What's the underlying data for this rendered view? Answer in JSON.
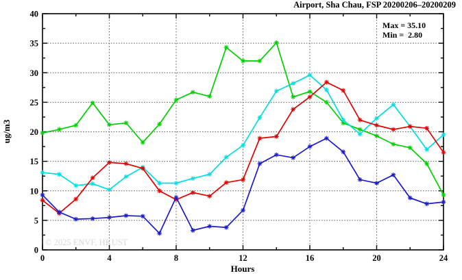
{
  "header": {
    "title": "Airport, Sha Chau, FSP 20200206–20200209"
  },
  "annotation": {
    "max_line": "Max = 35.10",
    "min_line": "Min =  2.80"
  },
  "watermark": "© 2025 ENVF, HKUST",
  "axes": {
    "x_label": "Hours",
    "y_label": "ug/m3"
  },
  "chart_data": {
    "type": "line",
    "title": "Airport, Sha Chau, FSP 20200206–20200209",
    "xlabel": "Hours",
    "ylabel": "ug/m3",
    "xlim": [
      0,
      24
    ],
    "ylim": [
      0,
      40
    ],
    "x_major_ticks": [
      0,
      4,
      8,
      12,
      16,
      20,
      24
    ],
    "x_minor_step": 2,
    "y_major_ticks": [
      0,
      5,
      10,
      15,
      20,
      25,
      30,
      35,
      40
    ],
    "y_minor_step": 2.5,
    "grid": "dotted lines at major ticks, full box frame with inward ticks",
    "legend": "none",
    "marker": "asterisk",
    "x": [
      0,
      1,
      2,
      3,
      4,
      5,
      6,
      7,
      8,
      9,
      10,
      11,
      12,
      13,
      14,
      15,
      16,
      17,
      18,
      19,
      20,
      21,
      22,
      23,
      24
    ],
    "series": [
      {
        "name": "green",
        "color": "#00cf00",
        "values": [
          19.8,
          20.4,
          21.1,
          24.9,
          21.2,
          21.5,
          18.2,
          21.3,
          25.4,
          26.7,
          26.0,
          34.3,
          32.0,
          32.0,
          35.1,
          25.9,
          26.8,
          25.0,
          21.5,
          20.4,
          19.3,
          17.9,
          17.3,
          14.6,
          9.3
        ]
      },
      {
        "name": "cyan",
        "color": "#00dede",
        "values": [
          13.1,
          12.8,
          10.9,
          11.2,
          10.2,
          12.4,
          14.0,
          11.3,
          11.3,
          12.1,
          12.8,
          15.7,
          17.7,
          22.4,
          26.9,
          28.2,
          29.6,
          27.1,
          22.0,
          19.6,
          22.3,
          24.6,
          20.9,
          17.0,
          19.5
        ]
      },
      {
        "name": "red",
        "color": "#e00000",
        "values": [
          8.4,
          6.2,
          8.6,
          12.2,
          14.8,
          14.6,
          13.8,
          10.0,
          8.5,
          9.7,
          9.1,
          11.4,
          11.9,
          18.9,
          19.2,
          23.8,
          25.9,
          28.4,
          27.0,
          22.0,
          21.1,
          20.4,
          20.9,
          20.6,
          16.5
        ]
      },
      {
        "name": "blue",
        "color": "#1a1acc",
        "values": [
          9.3,
          6.4,
          5.2,
          5.3,
          5.5,
          5.8,
          5.7,
          2.8,
          8.9,
          3.3,
          4.0,
          3.8,
          6.7,
          14.6,
          16.1,
          15.6,
          17.5,
          18.9,
          16.6,
          11.9,
          11.3,
          12.7,
          8.8,
          7.8,
          8.1
        ]
      }
    ],
    "stats": {
      "max": 35.1,
      "min": 2.8
    }
  }
}
